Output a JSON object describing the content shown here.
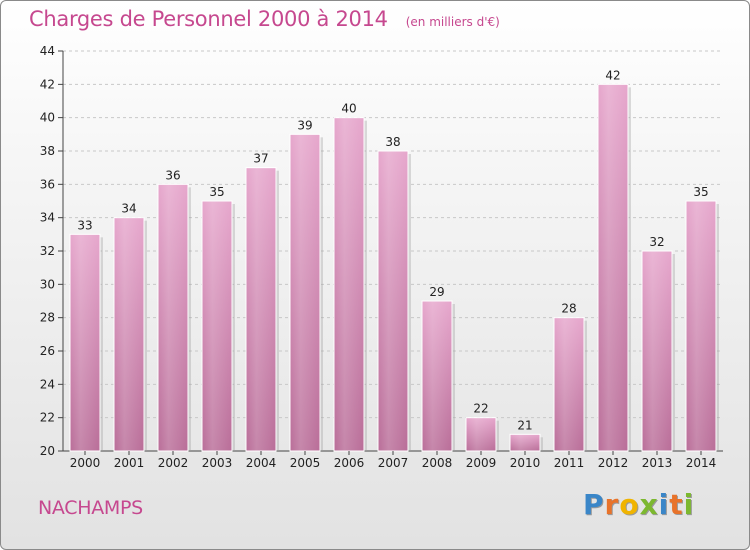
{
  "chart_data": {
    "type": "bar",
    "title": "Charges de Personnel 2000 à 2014",
    "subtitle": "(en milliers d'€)",
    "xlabel": "",
    "ylabel": "",
    "categories": [
      "2000",
      "2001",
      "2002",
      "2003",
      "2004",
      "2005",
      "2006",
      "2007",
      "2008",
      "2009",
      "2010",
      "2011",
      "2012",
      "2013",
      "2014"
    ],
    "values": [
      33,
      34,
      36,
      35,
      37,
      39,
      40,
      38,
      29,
      22,
      21,
      28,
      42,
      32,
      35
    ],
    "ylim": [
      20,
      44
    ],
    "yticks": [
      20,
      22,
      24,
      26,
      28,
      30,
      32,
      34,
      36,
      38,
      40,
      42,
      44
    ],
    "grid": true,
    "bar_color": "#d98cb9"
  },
  "footer": {
    "commune": "NACHAMPS",
    "brand_letters": [
      {
        "ch": "P",
        "color": "#3a86c8"
      },
      {
        "ch": "r",
        "color": "#e8732a"
      },
      {
        "ch": "o",
        "color": "#f0b400"
      },
      {
        "ch": "x",
        "color": "#7cb82f"
      },
      {
        "ch": "i",
        "color": "#3a86c8"
      },
      {
        "ch": "t",
        "color": "#e8732a"
      },
      {
        "ch": "i",
        "color": "#7cb82f"
      }
    ]
  }
}
